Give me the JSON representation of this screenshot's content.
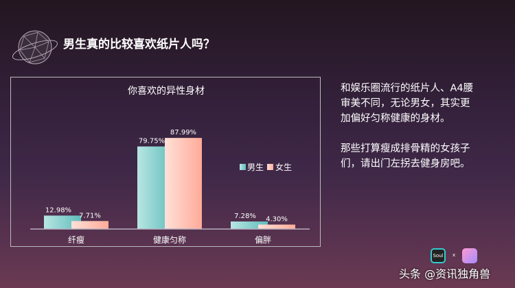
{
  "slide": {
    "title": "男生真的比较喜欢纸片人吗？",
    "paragraphs": [
      "和娱乐圈流行的纸片人、A4腰审美不同，无论男女，其实更加偏好匀称健康的身材。",
      "那些打算瘦成排骨精的女孩子们，请出门左拐去健身房吧。"
    ],
    "footer": "头条 @资讯独角兽",
    "logo_text": "Soul",
    "logo_sep": "x"
  },
  "chart_data": {
    "type": "bar",
    "title": "你喜欢的异性身材",
    "categories": [
      "纤瘦",
      "健康匀称",
      "偏胖"
    ],
    "series": [
      {
        "name": "男生",
        "values": [
          12.98,
          79.75,
          7.28
        ],
        "labels": [
          "12.98%",
          "79.75%",
          "7.28%"
        ],
        "color": "#6cc4c4"
      },
      {
        "name": "女生",
        "values": [
          7.71,
          87.99,
          4.3
        ],
        "labels": [
          "7.71%",
          "87.99%",
          "4.30%"
        ],
        "color": "#ffb0a0"
      }
    ],
    "ylim": [
      0,
      100
    ],
    "grid": false,
    "legend": "right",
    "xlabel": "",
    "ylabel": ""
  }
}
